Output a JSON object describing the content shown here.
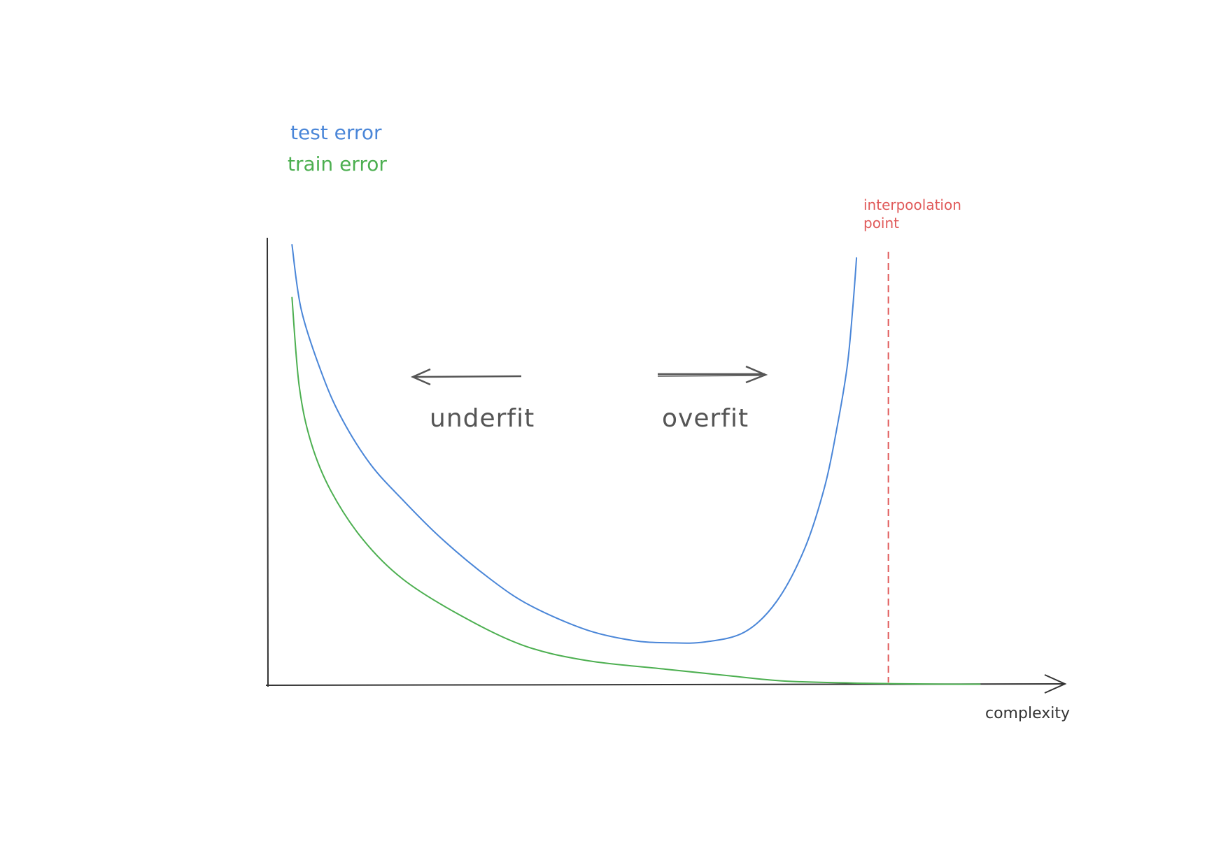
{
  "chart_data": {
    "type": "line",
    "xlabel": "complexity",
    "ylabel": "",
    "legend": {
      "placement": "top-left"
    },
    "grid": false,
    "xlim": [
      0,
      1
    ],
    "ylim": [
      0,
      1
    ],
    "colors": {
      "test": "#4a86d8",
      "train": "#4caf50",
      "interpolation": "#e05a5a",
      "axis": "#333333",
      "annotation": "#555555"
    },
    "series": [
      {
        "name": "test error",
        "key": "test",
        "x": [
          0.031,
          0.043,
          0.07,
          0.095,
          0.13,
          0.17,
          0.22,
          0.28,
          0.33,
          0.4,
          0.46,
          0.505,
          0.55,
          0.6,
          0.64,
          0.675,
          0.7,
          0.715,
          0.728,
          0.735,
          0.74
        ],
        "y": [
          1.0,
          0.85,
          0.7,
          0.6,
          0.5,
          0.42,
          0.33,
          0.24,
          0.18,
          0.125,
          0.1,
          0.095,
          0.097,
          0.12,
          0.19,
          0.31,
          0.45,
          0.58,
          0.72,
          0.85,
          0.97
        ]
      },
      {
        "name": "train error",
        "key": "train",
        "x": [
          0.031,
          0.04,
          0.055,
          0.08,
          0.12,
          0.17,
          0.24,
          0.32,
          0.4,
          0.5,
          0.58,
          0.65,
          0.75,
          0.85,
          0.895
        ],
        "y": [
          0.88,
          0.68,
          0.55,
          0.44,
          0.33,
          0.24,
          0.16,
          0.09,
          0.055,
          0.035,
          0.02,
          0.008,
          0.003,
          0.001,
          0.001
        ]
      }
    ],
    "annotations": {
      "underfit": "underfit",
      "overfit": "overfit",
      "interpolation_line1": "interpoolation",
      "interpolation_line2": "point",
      "interpolation_x": 0.78
    }
  }
}
